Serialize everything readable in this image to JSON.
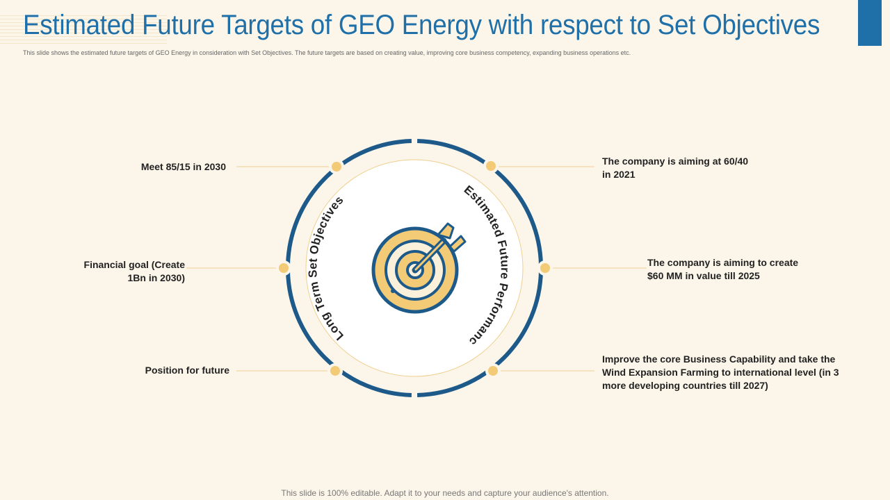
{
  "header": {
    "title": "Estimated Future Targets of GEO Energy with respect to Set Objectives",
    "subtitle": "This slide shows the estimated future targets of GEO Energy in consideration with Set Objectives. The future targets are based on creating value, improving core business competency, expanding business operations etc."
  },
  "diagram": {
    "left_arc_label": "Long Term Set Objectives",
    "right_arc_label": "Estimated Future Performance",
    "center_icon": "target-dart-icon",
    "left_items": [
      {
        "label": "Meet 85/15 in 2030"
      },
      {
        "label_line1": "Financial goal (Create",
        "label_line2": "1Bn in 2030)"
      },
      {
        "label": "Position for future"
      }
    ],
    "right_items": [
      {
        "label_line1": "The company is aiming at 60/40",
        "label_line2": "in 2021"
      },
      {
        "label_line1": "The company is aiming to create",
        "label_line2": "$60 MM in value till 2025"
      },
      {
        "label_line1": "Improve the core Business Capability and take the",
        "label_line2": "Wind Expansion Farming to international level (in 3",
        "label_line3": "more developing countries till 2027)"
      }
    ]
  },
  "colors": {
    "navy": "#1d5a8a",
    "gold": "#f3ca76",
    "title_blue": "#1f6fa8",
    "background": "#fcf6ea"
  },
  "footer": {
    "note": "This slide is 100% editable. Adapt it to your needs and capture your audience's attention."
  }
}
